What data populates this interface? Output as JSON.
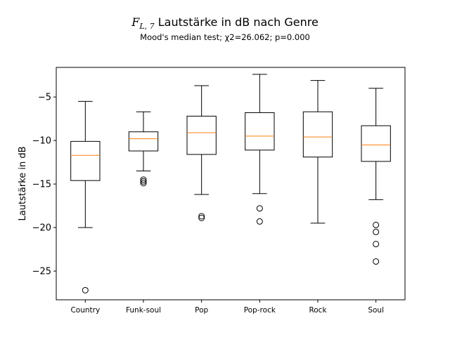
{
  "chart_data": {
    "type": "box",
    "title_symbol": "F",
    "title_subscript": "L, 7",
    "title_text": "Lautstärke in dB nach Genre",
    "subtitle": "Mood's median test; χ2=26.062; p=0.000",
    "xlabel": "",
    "ylabel": "Lautstärke in dB",
    "ylim": [
      -28.3,
      -1.6
    ],
    "yticks": [
      -5,
      -10,
      -15,
      -20,
      -25
    ],
    "ytick_labels": [
      "−5",
      "−10",
      "−15",
      "−20",
      "−25"
    ],
    "grid": false,
    "categories": [
      "Country",
      "Funk-soul",
      "Pop",
      "Pop-rock",
      "Rock",
      "Soul"
    ],
    "boxes": [
      {
        "whisker_low": -20.0,
        "q1": -14.6,
        "median": -11.7,
        "q3": -10.1,
        "whisker_high": -5.5,
        "outliers": [
          -27.2
        ]
      },
      {
        "whisker_low": -13.5,
        "q1": -11.2,
        "median": -9.8,
        "q3": -9.0,
        "whisker_high": -6.7,
        "outliers": [
          -14.5,
          -14.7,
          -14.9
        ]
      },
      {
        "whisker_low": -16.2,
        "q1": -11.6,
        "median": -9.1,
        "q3": -7.2,
        "whisker_high": -3.7,
        "outliers": [
          -18.7,
          -18.9
        ]
      },
      {
        "whisker_low": -16.1,
        "q1": -11.1,
        "median": -9.5,
        "q3": -6.8,
        "whisker_high": -2.4,
        "outliers": [
          -17.8,
          -19.3
        ]
      },
      {
        "whisker_low": -19.5,
        "q1": -11.9,
        "median": -9.6,
        "q3": -6.7,
        "whisker_high": -3.1,
        "outliers": []
      },
      {
        "whisker_low": -16.8,
        "q1": -12.4,
        "median": -10.5,
        "q3": -8.3,
        "whisker_high": -4.0,
        "outliers": [
          -19.7,
          -20.5,
          -21.9,
          -23.9
        ]
      }
    ],
    "colors": {
      "box": "#000000",
      "median": "#ff7f0e",
      "outlier_edge": "#000000"
    }
  }
}
